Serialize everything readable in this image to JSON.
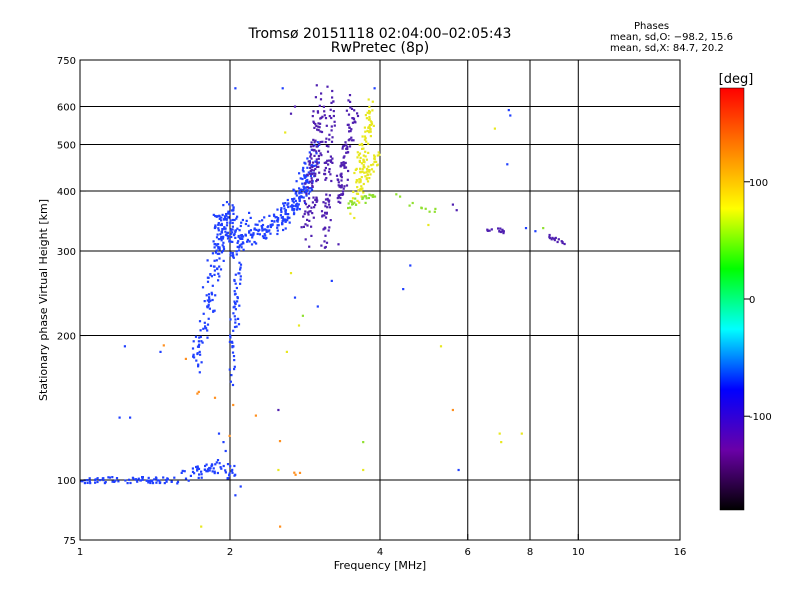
{
  "header": {
    "title": "Tromsø 20151118 02:04:00–02:05:43",
    "subtitle": "RwPretec (8p)",
    "stats_heading": "Phases",
    "stats_o": "mean, sd,O:  −98.2, 15.6",
    "stats_x": "mean, sd,X:  84.7, 20.2"
  },
  "chart_data": {
    "type": "scatter",
    "xlabel": "Frequency [MHz]",
    "ylabel": "Stationary phase Virtual Height [km]",
    "x_scale": "log",
    "y_scale": "log",
    "xlim": [
      1,
      16
    ],
    "ylim": [
      75,
      750
    ],
    "x_ticks": [
      1,
      2,
      4,
      6,
      8,
      10,
      16
    ],
    "x_gridlines": [
      2,
      4,
      6,
      8,
      10
    ],
    "y_ticks": [
      75,
      100,
      200,
      300,
      400,
      500,
      600,
      750
    ],
    "y_gridlines": [
      100,
      200,
      300,
      400,
      500,
      600
    ],
    "grid": true,
    "colorbar": {
      "label": "[deg]",
      "range": [
        -180,
        180
      ],
      "ticks": [
        100,
        0,
        -100
      ],
      "stops": [
        "#000000",
        "#6a00a8",
        "#0000ff",
        "#00ffff",
        "#00ff00",
        "#ffff00",
        "#ff8000",
        "#ff0000"
      ]
    },
    "point_colors": {
      "O": "#2040ff",
      "O_dark": "#5020b0",
      "X": "#e8e820",
      "X_green": "#90e030",
      "odd": "#ff9020"
    },
    "series": [
      {
        "kind": "O",
        "segments": [
          {
            "from": [
              1.0,
              100
            ],
            "to": [
              1.55,
              100
            ],
            "n": 70,
            "jy": 0.015
          },
          {
            "from": [
              1.55,
              101
            ],
            "to": [
              1.88,
              106
            ],
            "n": 40,
            "jy": 0.03
          },
          {
            "from": [
              1.88,
              106
            ],
            "to": [
              2.05,
              103
            ],
            "n": 22,
            "jy": 0.04
          }
        ]
      },
      {
        "kind": "O",
        "segments": [
          {
            "from": [
              1.7,
              175
            ],
            "to": [
              1.82,
              230
            ],
            "n": 40,
            "jx": 0.02,
            "jy": 0.08
          },
          {
            "from": [
              1.8,
              230
            ],
            "to": [
              1.92,
              330
            ],
            "n": 70,
            "jx": 0.025,
            "jy": 0.08
          },
          {
            "from": [
              1.88,
              330
            ],
            "to": [
              2.05,
              360
            ],
            "n": 90,
            "jx": 0.03,
            "jy": 0.07
          },
          {
            "from": [
              2.0,
              170
            ],
            "to": [
              2.1,
              300
            ],
            "n": 55,
            "jx": 0.015,
            "jy": 0.1
          },
          {
            "from": [
              2.0,
              300
            ],
            "to": [
              2.2,
              340
            ],
            "n": 60,
            "jx": 0.02,
            "jy": 0.06
          }
        ]
      },
      {
        "kind": "O",
        "segments": [
          {
            "from": [
              2.2,
              320
            ],
            "to": [
              2.6,
              360
            ],
            "n": 70,
            "jx": 0.02,
            "jy": 0.05
          },
          {
            "from": [
              2.5,
              340
            ],
            "to": [
              2.9,
              420
            ],
            "n": 90,
            "jx": 0.02,
            "jy": 0.05
          },
          {
            "from": [
              2.7,
              380
            ],
            "to": [
              3.0,
              480
            ],
            "n": 60,
            "jx": 0.02,
            "jy": 0.06
          }
        ]
      },
      {
        "kind": "O_dark",
        "segments": [
          {
            "from": [
              2.85,
              330
            ],
            "to": [
              3.05,
              620
            ],
            "n": 120,
            "jx": 0.025,
            "jy": 0.1
          },
          {
            "from": [
              3.1,
              330
            ],
            "to": [
              3.2,
              620
            ],
            "n": 80,
            "jx": 0.02,
            "jy": 0.1
          },
          {
            "from": [
              3.3,
              380
            ],
            "to": [
              3.55,
              620
            ],
            "n": 90,
            "jx": 0.02,
            "jy": 0.09
          },
          {
            "from": [
              6.4,
              335
            ],
            "to": [
              7.1,
              330
            ],
            "n": 16,
            "jy": 0.01
          },
          {
            "from": [
              8.7,
              322
            ],
            "to": [
              9.4,
              312
            ],
            "n": 14,
            "jy": 0.01
          }
        ]
      },
      {
        "kind": "X",
        "segments": [
          {
            "from": [
              3.55,
              380
            ],
            "to": [
              3.85,
              600
            ],
            "n": 90,
            "jx": 0.02,
            "jy": 0.08
          },
          {
            "from": [
              3.6,
              400
            ],
            "to": [
              3.95,
              470
            ],
            "n": 40,
            "jx": 0.02,
            "jy": 0.05
          }
        ]
      },
      {
        "kind": "X_green",
        "segments": [
          {
            "from": [
              3.45,
              375
            ],
            "to": [
              3.9,
              395
            ],
            "n": 25,
            "jx": 0.015,
            "jy": 0.02
          },
          {
            "from": [
              4.1,
              395
            ],
            "to": [
              5.2,
              360
            ],
            "n": 10,
            "jx": 0.01,
            "jy": 0.02
          }
        ]
      },
      {
        "kind": "odd",
        "segments": [
          {
            "from": [
              1.5,
              185
            ],
            "to": [
              3.0,
              95
            ],
            "n": 12,
            "jx": 0.05,
            "jy": 0.1
          }
        ]
      }
    ],
    "isolated_points": [
      {
        "x": 1.23,
        "y": 190,
        "kind": "O"
      },
      {
        "x": 1.2,
        "y": 135,
        "kind": "O"
      },
      {
        "x": 1.26,
        "y": 135,
        "kind": "O"
      },
      {
        "x": 2.05,
        "y": 655,
        "kind": "O"
      },
      {
        "x": 2.55,
        "y": 655,
        "kind": "O"
      },
      {
        "x": 2.7,
        "y": 600,
        "kind": "O_dark"
      },
      {
        "x": 2.65,
        "y": 580,
        "kind": "O_dark"
      },
      {
        "x": 2.58,
        "y": 530,
        "kind": "X"
      },
      {
        "x": 3.3,
        "y": 310,
        "kind": "O_dark"
      },
      {
        "x": 3.1,
        "y": 305,
        "kind": "O_dark"
      },
      {
        "x": 3.2,
        "y": 260,
        "kind": "O"
      },
      {
        "x": 3.0,
        "y": 230,
        "kind": "O"
      },
      {
        "x": 2.7,
        "y": 240,
        "kind": "O"
      },
      {
        "x": 2.8,
        "y": 220,
        "kind": "X_green"
      },
      {
        "x": 2.75,
        "y": 210,
        "kind": "X"
      },
      {
        "x": 2.65,
        "y": 270,
        "kind": "X"
      },
      {
        "x": 2.6,
        "y": 185,
        "kind": "X"
      },
      {
        "x": 2.5,
        "y": 140,
        "kind": "O_dark"
      },
      {
        "x": 2.5,
        "y": 105,
        "kind": "X"
      },
      {
        "x": 2.52,
        "y": 80,
        "kind": "odd"
      },
      {
        "x": 1.75,
        "y": 80,
        "kind": "X"
      },
      {
        "x": 2.05,
        "y": 93,
        "kind": "O"
      },
      {
        "x": 2.1,
        "y": 97,
        "kind": "O"
      },
      {
        "x": 1.94,
        "y": 120,
        "kind": "O"
      },
      {
        "x": 1.9,
        "y": 125,
        "kind": "O"
      },
      {
        "x": 1.96,
        "y": 115,
        "kind": "O"
      },
      {
        "x": 1.45,
        "y": 185,
        "kind": "O"
      },
      {
        "x": 3.7,
        "y": 105,
        "kind": "X"
      },
      {
        "x": 3.7,
        "y": 120,
        "kind": "X_green"
      },
      {
        "x": 4.45,
        "y": 250,
        "kind": "O"
      },
      {
        "x": 4.6,
        "y": 280,
        "kind": "O"
      },
      {
        "x": 5.3,
        "y": 190,
        "kind": "X"
      },
      {
        "x": 5.6,
        "y": 140,
        "kind": "odd"
      },
      {
        "x": 5.75,
        "y": 105,
        "kind": "O"
      },
      {
        "x": 6.95,
        "y": 125,
        "kind": "X"
      },
      {
        "x": 7.7,
        "y": 125,
        "kind": "X"
      },
      {
        "x": 7.0,
        "y": 120,
        "kind": "X"
      },
      {
        "x": 7.2,
        "y": 455,
        "kind": "O"
      },
      {
        "x": 7.25,
        "y": 590,
        "kind": "O"
      },
      {
        "x": 7.3,
        "y": 575,
        "kind": "O"
      },
      {
        "x": 6.8,
        "y": 540,
        "kind": "X"
      },
      {
        "x": 5.6,
        "y": 375,
        "kind": "O_dark"
      },
      {
        "x": 5.7,
        "y": 365,
        "kind": "O_dark"
      },
      {
        "x": 7.85,
        "y": 335,
        "kind": "O"
      },
      {
        "x": 8.2,
        "y": 330,
        "kind": "O"
      },
      {
        "x": 8.5,
        "y": 335,
        "kind": "X_green"
      },
      {
        "x": 5.0,
        "y": 340,
        "kind": "X"
      },
      {
        "x": 3.9,
        "y": 655,
        "kind": "O"
      }
    ]
  }
}
